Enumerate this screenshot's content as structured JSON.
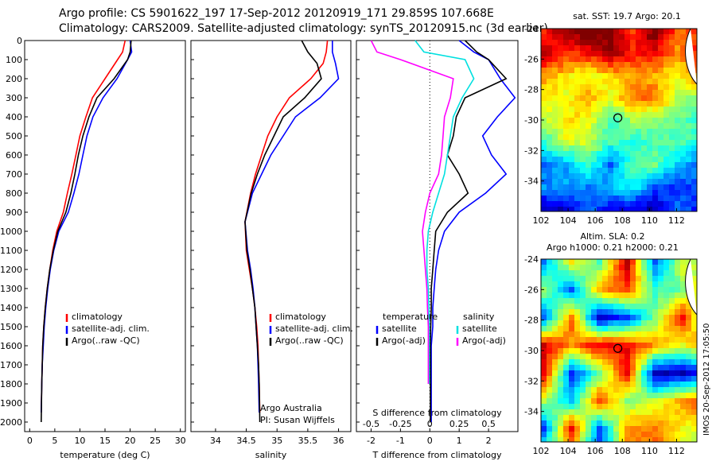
{
  "header": {
    "line1": "Argo profile: CS 5901622_197 17-Sep-2012 20120919_171 29.859S 107.668E",
    "line2": "Climatology: CARS2009. Satellite-adjusted climatology: synTS_20120915.nc (3d earlier)"
  },
  "stamp": "IMOS 20-Sep-2012 17:05:50",
  "colors": {
    "climatology": "#ff0000",
    "satellite": "#0000ff",
    "argo": "#000000",
    "sat_salinity": "#00e0e0",
    "argo_salinity_diff": "#ff00ff"
  },
  "chart_data": [
    {
      "type": "line",
      "xlabel": "temperature (deg C)",
      "ylabel": "",
      "xlim": [
        -1,
        31
      ],
      "ylim": [
        2050,
        0
      ],
      "xticks": [
        "0",
        "5",
        "10",
        "15",
        "20",
        "25",
        "30"
      ],
      "yticks": [
        "0",
        "100",
        "200",
        "300",
        "400",
        "500",
        "600",
        "700",
        "800",
        "900",
        "1000",
        "1100",
        "1200",
        "1300",
        "1400",
        "1500",
        "1600",
        "1700",
        "1800",
        "1900",
        "2000"
      ],
      "legend": [
        "climatology",
        "satellite-adj. clim.",
        "Argo(..raw -QC)"
      ],
      "series": [
        {
          "name": "climatology",
          "color": "#ff0000",
          "x": [
            19,
            18.5,
            17.5,
            15,
            12.5,
            11.2,
            10,
            9.2,
            8.4,
            7.5,
            6.7,
            5.4,
            4.6,
            4,
            3.5,
            3.1,
            2.8,
            2.6,
            2.5,
            2.4,
            2.3
          ],
          "y": [
            0,
            60,
            100,
            200,
            300,
            400,
            500,
            600,
            700,
            800,
            900,
            1000,
            1100,
            1200,
            1300,
            1400,
            1500,
            1600,
            1700,
            1800,
            1950
          ]
        },
        {
          "name": "satellite-adj. clim.",
          "color": "#0000ff",
          "x": [
            20,
            20.3,
            19.5,
            17.4,
            14.6,
            12.6,
            11.4,
            10.6,
            9.8,
            8.8,
            7.7,
            5.8,
            4.8,
            4.1,
            3.6,
            3.2,
            2.9,
            2.7,
            2.5,
            2.4,
            2.3
          ],
          "y": [
            0,
            60,
            100,
            200,
            300,
            400,
            500,
            600,
            700,
            800,
            900,
            1000,
            1100,
            1200,
            1300,
            1400,
            1500,
            1600,
            1700,
            1800,
            1950
          ]
        },
        {
          "name": "Argo(..raw -QC)",
          "color": "#000000",
          "x": [
            20.2,
            20,
            19.5,
            16.8,
            13.4,
            11.8,
            10.6,
            9.7,
            9,
            8.2,
            7.2,
            5.6,
            4.7,
            4,
            3.5,
            3.1,
            2.8,
            2.6,
            2.5,
            2.4,
            2.3
          ],
          "y": [
            0,
            60,
            100,
            200,
            300,
            400,
            500,
            600,
            700,
            800,
            900,
            1000,
            1100,
            1200,
            1300,
            1400,
            1500,
            1600,
            1700,
            1800,
            2000
          ]
        }
      ]
    },
    {
      "type": "line",
      "xlabel": "salinity",
      "xlim": [
        33.6,
        36.2
      ],
      "ylim": [
        2050,
        0
      ],
      "xticks": [
        "34",
        "34.5",
        "35",
        "35.5",
        "36"
      ],
      "legend": [
        "climatology",
        "satellite-adj. clim.",
        "Argo(..raw -QC)"
      ],
      "annotations": [
        "Argo Australia",
        "PI: Susan Wijffels"
      ],
      "series": [
        {
          "name": "climatology",
          "color": "#ff0000",
          "x": [
            35.82,
            35.8,
            35.75,
            35.55,
            35.2,
            35.0,
            34.85,
            34.75,
            34.65,
            34.57,
            34.48,
            34.5,
            34.55,
            34.6,
            34.64,
            34.67,
            34.69,
            34.7,
            34.71,
            34.72
          ],
          "y": [
            0,
            60,
            120,
            200,
            300,
            400,
            500,
            600,
            700,
            800,
            950,
            1100,
            1200,
            1300,
            1400,
            1500,
            1600,
            1700,
            1800,
            1950
          ]
        },
        {
          "name": "satellite-adj. clim.",
          "color": "#0000ff",
          "x": [
            35.9,
            35.9,
            35.95,
            36.0,
            35.7,
            35.3,
            35.1,
            34.9,
            34.75,
            34.6,
            34.48,
            34.52,
            34.57,
            34.61,
            34.64,
            34.66,
            34.68,
            34.69,
            34.7,
            34.71
          ],
          "y": [
            0,
            60,
            120,
            200,
            300,
            400,
            500,
            600,
            700,
            800,
            950,
            1100,
            1200,
            1300,
            1400,
            1500,
            1600,
            1700,
            1800,
            1950
          ]
        },
        {
          "name": "Argo(..raw -QC)",
          "color": "#000000",
          "x": [
            35.4,
            35.5,
            35.65,
            35.72,
            35.45,
            35.1,
            34.95,
            34.8,
            34.68,
            34.58,
            34.48,
            34.51,
            34.56,
            34.6,
            34.64,
            34.66,
            34.68,
            34.7,
            34.71,
            34.72
          ],
          "y": [
            0,
            60,
            120,
            200,
            300,
            400,
            500,
            600,
            700,
            800,
            950,
            1100,
            1200,
            1300,
            1400,
            1500,
            1600,
            1700,
            1800,
            2000
          ]
        }
      ]
    },
    {
      "type": "line",
      "xlabel": "T difference from climatology",
      "top_label": "S difference from climatology",
      "xlim": [
        -2.5,
        3.0
      ],
      "ylim": [
        2050,
        0
      ],
      "xticks": [
        "-2",
        "-1",
        "0",
        "1",
        "2"
      ],
      "top_ticks": [
        "-0.5",
        "-0.25",
        "0",
        "0.25",
        "0.5"
      ],
      "legend": [
        "temperature",
        "satellite",
        "Argo(-adj)",
        "salinity",
        "satellite",
        "Argo(-adj)"
      ],
      "series": [
        {
          "name": "temperature satellite",
          "color": "#0000ff",
          "x": [
            1.0,
            1.5,
            2.0,
            2.4,
            2.9,
            2.3,
            1.8,
            2.1,
            2.6,
            1.9,
            1.0,
            0.5,
            0.3,
            0.2,
            0.15,
            0.1,
            0.1,
            0.05,
            0.05,
            0.05,
            0.05
          ],
          "y": [
            0,
            60,
            100,
            200,
            300,
            400,
            500,
            600,
            700,
            800,
            900,
            1000,
            1100,
            1200,
            1300,
            1400,
            1500,
            1600,
            1700,
            1800,
            2000
          ]
        },
        {
          "name": "temperature Argo(-adj)",
          "color": "#000000",
          "x": [
            1.2,
            1.6,
            2.0,
            2.6,
            1.2,
            0.9,
            0.8,
            0.6,
            1.0,
            1.3,
            0.6,
            0.2,
            0.15,
            0.1,
            0.05,
            0.05,
            0.03,
            0.02,
            0.02,
            0.02,
            0.02
          ],
          "y": [
            0,
            60,
            100,
            200,
            300,
            400,
            500,
            600,
            700,
            800,
            900,
            1000,
            1100,
            1200,
            1300,
            1400,
            1500,
            1600,
            1700,
            1800,
            2000
          ]
        },
        {
          "name": "salinity satellite",
          "color": "#00e0e0",
          "x": [
            -0.5,
            -0.2,
            1.2,
            1.5,
            1.1,
            0.8,
            0.7,
            0.6,
            0.5,
            0.3,
            0.1,
            -0.05,
            -0.1,
            -0.1,
            -0.05,
            -0.03,
            -0.02,
            -0.02,
            -0.02,
            -0.02
          ],
          "y": [
            0,
            60,
            100,
            200,
            300,
            400,
            500,
            600,
            700,
            800,
            900,
            1000,
            1100,
            1200,
            1300,
            1400,
            1500,
            1600,
            1700,
            1800
          ]
        },
        {
          "name": "salinity Argo(-adj)",
          "color": "#ff00ff",
          "x": [
            -2.0,
            -1.8,
            -1.0,
            0.8,
            0.7,
            0.5,
            0.45,
            0.4,
            0.3,
            0.0,
            -0.15,
            -0.25,
            -0.2,
            -0.15,
            -0.1,
            -0.08,
            -0.05,
            -0.05,
            -0.05,
            -0.05
          ],
          "y": [
            0,
            60,
            100,
            200,
            300,
            400,
            500,
            600,
            700,
            800,
            900,
            1000,
            1100,
            1200,
            1300,
            1400,
            1500,
            1600,
            1700,
            1800
          ]
        }
      ]
    },
    {
      "type": "heatmap",
      "title": "sat. SST: 19.7 Argo: 20.1",
      "xticks": [
        "102",
        "104",
        "106",
        "108",
        "110",
        "112"
      ],
      "yticks": [
        "-24",
        "-26",
        "-28",
        "-30",
        "-32",
        "-34"
      ],
      "xlim": [
        102,
        113.5
      ],
      "ylim": [
        -36,
        -24
      ],
      "marker": {
        "lon": 107.668,
        "lat": -29.859
      }
    },
    {
      "type": "heatmap",
      "title_line1": "Altim. SLA: 0.2",
      "title_line2": "Argo h1000: 0.21 h2000: 0.21",
      "xticks": [
        "102",
        "104",
        "106",
        "108",
        "110",
        "112"
      ],
      "yticks": [
        "-24",
        "-26",
        "-28",
        "-30",
        "-32",
        "-34"
      ],
      "xlim": [
        102,
        113.5
      ],
      "ylim": [
        -36,
        -24
      ],
      "marker": {
        "lon": 107.668,
        "lat": -29.859
      }
    }
  ]
}
